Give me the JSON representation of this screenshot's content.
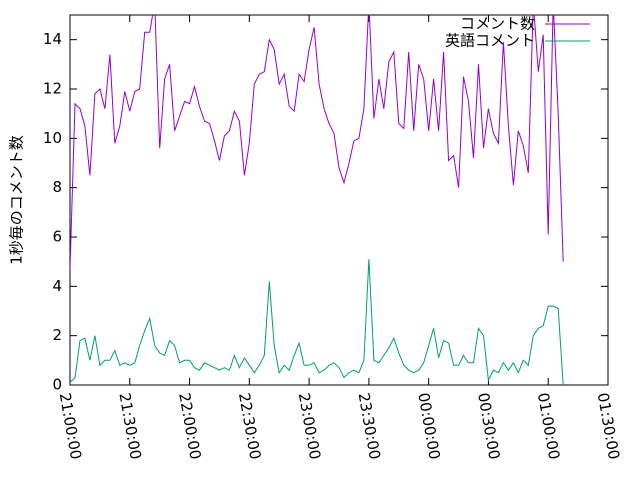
{
  "chart_data": {
    "type": "line",
    "ylabel": "1秒毎のコメント数",
    "x": [
      "21:00:00",
      "21:02:30",
      "21:05:00",
      "21:07:30",
      "21:10:00",
      "21:12:30",
      "21:15:00",
      "21:17:30",
      "21:20:00",
      "21:22:30",
      "21:25:00",
      "21:27:30",
      "21:30:00",
      "21:32:30",
      "21:35:00",
      "21:37:30",
      "21:40:00",
      "21:42:30",
      "21:45:00",
      "21:47:30",
      "21:50:00",
      "21:52:30",
      "21:55:00",
      "21:57:30",
      "22:00:00",
      "22:02:30",
      "22:05:00",
      "22:07:30",
      "22:10:00",
      "22:12:30",
      "22:15:00",
      "22:17:30",
      "22:20:00",
      "22:22:30",
      "22:25:00",
      "22:27:30",
      "22:30:00",
      "22:32:30",
      "22:35:00",
      "22:37:30",
      "22:40:00",
      "22:42:30",
      "22:45:00",
      "22:47:30",
      "22:50:00",
      "22:52:30",
      "22:55:00",
      "22:57:30",
      "23:00:00",
      "23:02:30",
      "23:05:00",
      "23:07:30",
      "23:10:00",
      "23:12:30",
      "23:15:00",
      "23:17:30",
      "23:20:00",
      "23:22:30",
      "23:25:00",
      "23:27:30",
      "23:30:00",
      "23:32:30",
      "23:35:00",
      "23:37:30",
      "23:40:00",
      "23:42:30",
      "23:45:00",
      "23:47:30",
      "23:50:00",
      "23:52:30",
      "23:55:00",
      "23:57:30",
      "00:00:00",
      "00:02:30",
      "00:05:00",
      "00:07:30",
      "00:10:00",
      "00:12:30",
      "00:15:00",
      "00:17:30",
      "00:20:00",
      "00:22:30",
      "00:25:00",
      "00:27:30",
      "00:30:00",
      "00:32:30",
      "00:35:00",
      "00:37:30",
      "00:40:00",
      "00:42:30",
      "00:45:00",
      "00:47:30",
      "00:50:00",
      "00:52:30",
      "00:55:00",
      "00:57:30",
      "01:00:00",
      "01:02:30",
      "01:05:00",
      "01:07:30"
    ],
    "series": [
      {
        "name": "コメント数",
        "color": "#9400d3",
        "values": [
          4.7,
          11.4,
          11.2,
          10.5,
          8.5,
          11.8,
          12.0,
          11.2,
          13.4,
          9.8,
          10.5,
          11.9,
          11.1,
          11.9,
          12.0,
          14.3,
          14.3,
          15.5,
          9.6,
          12.4,
          13.0,
          10.3,
          10.9,
          11.5,
          11.4,
          12.1,
          11.3,
          10.7,
          10.6,
          9.9,
          9.1,
          10.1,
          10.3,
          11.1,
          10.7,
          8.5,
          9.8,
          12.2,
          12.6,
          12.7,
          14.0,
          13.6,
          12.2,
          12.6,
          11.3,
          11.1,
          12.6,
          12.3,
          13.6,
          14.5,
          12.2,
          11.2,
          10.6,
          10.2,
          8.8,
          8.2,
          9.0,
          9.9,
          10.0,
          11.2,
          15.5,
          10.8,
          12.4,
          11.2,
          13.1,
          13.5,
          10.6,
          10.4,
          13.5,
          10.3,
          13.0,
          12.4,
          10.3,
          12.4,
          10.3,
          13.5,
          9.1,
          9.3,
          8.0,
          12.5,
          11.5,
          9.2,
          13.0,
          9.6,
          11.2,
          10.2,
          9.8,
          13.9,
          10.5,
          8.1,
          10.3,
          9.7,
          8.6,
          15.5,
          12.7,
          14.2,
          6.1,
          15.5,
          11.0,
          5.0
        ]
      },
      {
        "name": "英語コメント",
        "color": "#009e73",
        "values": [
          0.1,
          0.3,
          1.8,
          1.9,
          1.0,
          2.0,
          0.8,
          1.0,
          1.0,
          1.4,
          0.8,
          0.9,
          0.8,
          0.9,
          1.6,
          2.2,
          2.7,
          1.6,
          1.3,
          1.2,
          1.8,
          1.6,
          0.9,
          1.0,
          1.0,
          0.7,
          0.6,
          0.9,
          0.8,
          0.7,
          0.6,
          0.7,
          0.6,
          1.2,
          0.7,
          1.1,
          0.8,
          0.5,
          0.8,
          1.2,
          4.2,
          1.6,
          0.5,
          0.8,
          0.6,
          1.2,
          1.7,
          0.8,
          0.8,
          0.9,
          0.5,
          0.6,
          0.8,
          0.9,
          0.7,
          0.3,
          0.5,
          0.6,
          0.5,
          1.0,
          5.1,
          1.0,
          0.9,
          1.2,
          1.5,
          1.9,
          1.3,
          0.8,
          0.6,
          0.5,
          0.6,
          0.9,
          1.6,
          2.3,
          1.1,
          1.8,
          1.7,
          0.8,
          0.8,
          1.2,
          0.9,
          0.9,
          2.3,
          2.0,
          0.2,
          0.6,
          0.5,
          0.9,
          0.6,
          0.9,
          0.5,
          1.0,
          0.8,
          2.0,
          2.3,
          2.4,
          3.2,
          3.2,
          3.1,
          0.0
        ]
      }
    ],
    "xlim": [
      "21:00:00",
      "01:30:00"
    ],
    "xticks": [
      "21:00:00",
      "21:30:00",
      "22:00:00",
      "22:30:00",
      "23:00:00",
      "23:30:00",
      "00:00:00",
      "00:30:00",
      "01:00:00",
      "01:30:00"
    ],
    "ylim": [
      0,
      15
    ],
    "yticks": [
      0,
      2,
      4,
      6,
      8,
      10,
      12,
      14
    ],
    "legend": "top-right"
  }
}
